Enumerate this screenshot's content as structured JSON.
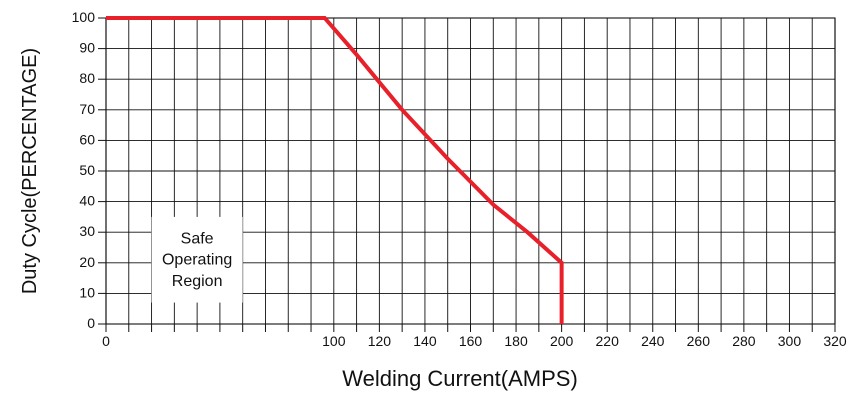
{
  "chart_data": {
    "type": "line",
    "xlabel": "Welding Current(AMPS)",
    "ylabel": "Duty Cycle(PERCENTAGE)",
    "xlim": [
      0,
      320
    ],
    "ylim": [
      0,
      100
    ],
    "x_ticks": [
      "0",
      "100",
      "120",
      "140",
      "160",
      "180",
      "200",
      "220",
      "240",
      "260",
      "280",
      "300",
      "320"
    ],
    "y_ticks": [
      "100",
      "90",
      "80",
      "70",
      "60",
      "50",
      "40",
      "30",
      "20",
      "10",
      "0"
    ],
    "grid": true,
    "series": [
      {
        "color": "#e8202a",
        "points": [
          [
            0,
            100
          ],
          [
            96,
            100
          ],
          [
            110,
            88
          ],
          [
            130,
            70
          ],
          [
            150,
            54
          ],
          [
            170,
            39
          ],
          [
            185,
            30
          ],
          [
            200,
            20
          ],
          [
            200,
            0
          ]
        ]
      }
    ],
    "annotation": {
      "lines": [
        "Safe",
        "Operating",
        "Region"
      ]
    }
  }
}
